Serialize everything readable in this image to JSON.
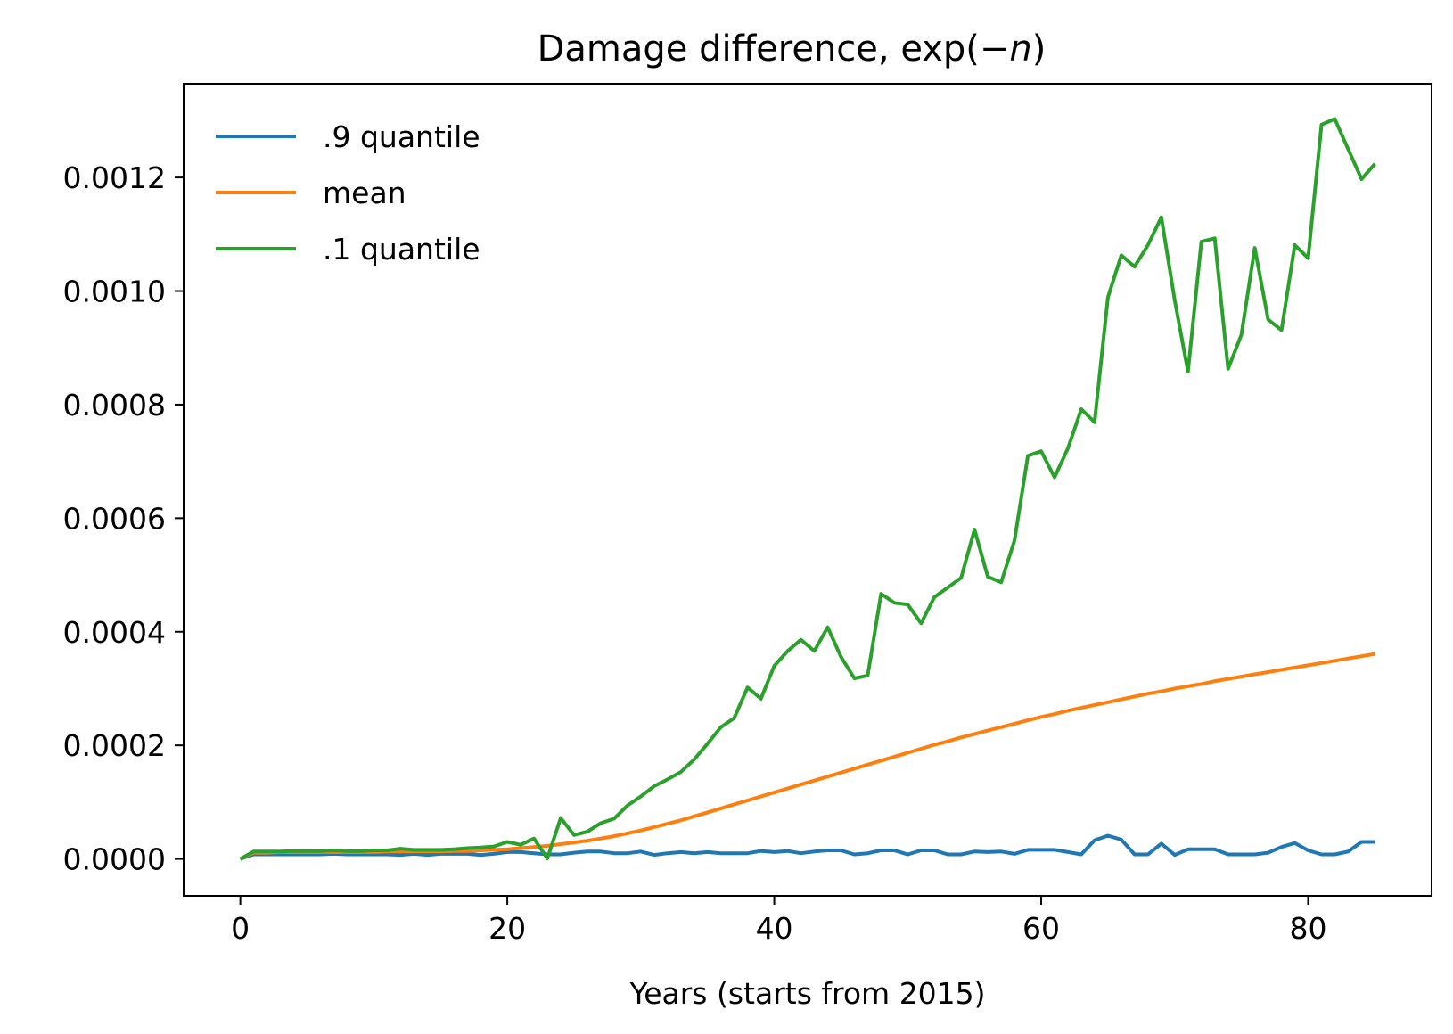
{
  "chart_data": {
    "type": "line",
    "title_parts": [
      "Damage difference, exp(−",
      "n",
      ")"
    ],
    "xlabel": "Years (starts from 2015)",
    "ylabel": "",
    "xlim": [
      -4.25,
      89.25
    ],
    "ylim": [
      -6.5e-05,
      0.001365
    ],
    "xticks": [
      0,
      20,
      40,
      60,
      80
    ],
    "xtick_labels": [
      "0",
      "20",
      "40",
      "60",
      "80"
    ],
    "yticks": [
      0,
      0.0002,
      0.0004,
      0.0006,
      0.0008,
      0.001,
      0.0012
    ],
    "ytick_labels": [
      "0.0000",
      "0.0002",
      "0.0004",
      "0.0006",
      "0.0008",
      "0.0010",
      "0.0012"
    ],
    "grid": false,
    "legend_position": "top-left",
    "x": [
      0,
      1,
      2,
      3,
      4,
      5,
      6,
      7,
      8,
      9,
      10,
      11,
      12,
      13,
      14,
      15,
      16,
      17,
      18,
      19,
      20,
      21,
      22,
      23,
      24,
      25,
      26,
      27,
      28,
      29,
      30,
      31,
      32,
      33,
      34,
      35,
      36,
      37,
      38,
      39,
      40,
      41,
      42,
      43,
      44,
      45,
      46,
      47,
      48,
      49,
      50,
      51,
      52,
      53,
      54,
      55,
      56,
      57,
      58,
      59,
      60,
      61,
      62,
      63,
      64,
      65,
      66,
      67,
      68,
      69,
      70,
      71,
      72,
      73,
      74,
      75,
      76,
      77,
      78,
      79,
      80,
      81,
      82,
      83,
      84,
      85
    ],
    "series": [
      {
        "name": ".9 quantile",
        "color": "#1f77b4",
        "values": [
          0,
          8e-06,
          8e-06,
          8e-06,
          8e-06,
          8e-06,
          8e-06,
          9e-06,
          8e-06,
          8e-06,
          8e-06,
          8e-06,
          7e-06,
          9e-06,
          7e-06,
          9e-06,
          9e-06,
          9e-06,
          7e-06,
          9e-06,
          1.2e-05,
          1.2e-05,
          1e-05,
          8e-06,
          8e-06,
          1.1e-05,
          1.3e-05,
          1.3e-05,
          1e-05,
          1e-05,
          1.3e-05,
          7e-06,
          1e-05,
          1.2e-05,
          1e-05,
          1.2e-05,
          1e-05,
          1e-05,
          1e-05,
          1.4e-05,
          1.2e-05,
          1.4e-05,
          1e-05,
          1.3e-05,
          1.5e-05,
          1.5e-05,
          8e-06,
          1e-05,
          1.5e-05,
          1.5e-05,
          8e-06,
          1.5e-05,
          1.5e-05,
          8e-06,
          8e-06,
          1.3e-05,
          1.2e-05,
          1.3e-05,
          9e-06,
          1.6e-05,
          1.6e-05,
          1.6e-05,
          1.2e-05,
          8e-06,
          3.3e-05,
          4.1e-05,
          3.4e-05,
          8e-06,
          8e-06,
          2.7e-05,
          7e-06,
          1.7e-05,
          1.7e-05,
          1.7e-05,
          8e-06,
          8e-06,
          8e-06,
          1.1e-05,
          2.1e-05,
          2.8e-05,
          1.5e-05,
          8e-06,
          8e-06,
          1.3e-05,
          3e-05,
          3e-05
        ]
      },
      {
        "name": "mean",
        "color": "#ff7f0e",
        "values": [
          0,
          1.1e-05,
          1.1e-05,
          1.2e-05,
          1.2e-05,
          1.2e-05,
          1.2e-05,
          1.2e-05,
          1.2e-05,
          1.2e-05,
          1.2e-05,
          1.3e-05,
          1.3e-05,
          1.3e-05,
          1.3e-05,
          1.3e-05,
          1.4e-05,
          1.4e-05,
          1.5e-05,
          1.6e-05,
          1.7e-05,
          1.9e-05,
          2.1e-05,
          2.3e-05,
          2.6e-05,
          2.9e-05,
          3.2e-05,
          3.6e-05,
          4e-05,
          4.5e-05,
          5e-05,
          5.6e-05,
          6.2e-05,
          6.8e-05,
          7.5e-05,
          8.2e-05,
          8.9e-05,
          9.6e-05,
          0.000103,
          0.00011,
          0.000117,
          0.000124,
          0.000131,
          0.000138,
          0.000145,
          0.000152,
          0.000159,
          0.000166,
          0.000173,
          0.00018,
          0.000187,
          0.000194,
          0.000201,
          0.000207,
          0.000214,
          0.00022,
          0.000226,
          0.000232,
          0.000238,
          0.000244,
          0.00025,
          0.000255,
          0.000261,
          0.000266,
          0.000271,
          0.000276,
          0.000281,
          0.000286,
          0.000291,
          0.000295,
          0.0003,
          0.000304,
          0.000308,
          0.000313,
          0.000317,
          0.000321,
          0.000325,
          0.000329,
          0.000333,
          0.000337,
          0.000341,
          0.000345,
          0.000349,
          0.000353,
          0.000357,
          0.000361
        ]
      },
      {
        "name": ".1 quantile",
        "color": "#2ca02c",
        "values": [
          0,
          1.3e-05,
          1.3e-05,
          1.3e-05,
          1.4e-05,
          1.4e-05,
          1.4e-05,
          1.5e-05,
          1.4e-05,
          1.4e-05,
          1.5e-05,
          1.5e-05,
          1.8e-05,
          1.6e-05,
          1.6e-05,
          1.6e-05,
          1.7e-05,
          1.9e-05,
          2e-05,
          2.2e-05,
          3e-05,
          2.5e-05,
          3.6e-05,
          1e-06,
          7.2e-05,
          4.2e-05,
          4.8e-05,
          6.3e-05,
          7.1e-05,
          9.4e-05,
          0.00011,
          0.000128,
          0.00014,
          0.000153,
          0.000175,
          0.000203,
          0.000232,
          0.000248,
          0.000302,
          0.000282,
          0.00034,
          0.000366,
          0.000386,
          0.000366,
          0.000408,
          0.000356,
          0.000318,
          0.000323,
          0.000467,
          0.000451,
          0.000448,
          0.000415,
          0.000461,
          0.000478,
          0.000495,
          0.00058,
          0.000497,
          0.000487,
          0.000561,
          0.00071,
          0.000718,
          0.000672,
          0.000723,
          0.000792,
          0.000769,
          0.000989,
          0.001063,
          0.001043,
          0.001081,
          0.00113,
          0.000984,
          0.000858,
          0.001087,
          0.001093,
          0.000863,
          0.000923,
          0.001076,
          0.00095,
          0.000931,
          0.001081,
          0.001058,
          0.001293,
          0.001303,
          0.00125,
          0.001197,
          0.001224
        ]
      }
    ]
  }
}
